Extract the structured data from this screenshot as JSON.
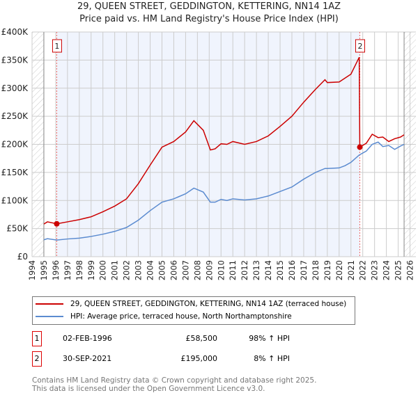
{
  "title": "29, QUEEN STREET, GEDDINGTON, KETTERING, NN14 1AZ",
  "subtitle": "Price paid vs. HM Land Registry's House Price Index (HPI)",
  "chart_data": {
    "type": "line",
    "title": "29, QUEEN STREET, GEDDINGTON, KETTERING, NN14 1AZ — Price paid vs. HM Land Registry's House Price Index (HPI)",
    "xlim": [
      1994,
      2026.5
    ],
    "ylim": [
      0,
      400000
    ],
    "x_ticks": [
      "1994",
      "1995",
      "1996",
      "1997",
      "1998",
      "1999",
      "2000",
      "2001",
      "2002",
      "2003",
      "2004",
      "2005",
      "2006",
      "2007",
      "2008",
      "2009",
      "2010",
      "2011",
      "2012",
      "2013",
      "2014",
      "2015",
      "2016",
      "2017",
      "2018",
      "2019",
      "2020",
      "2021",
      "2022",
      "2023",
      "2024",
      "2025",
      "2026"
    ],
    "y_ticks": [
      {
        "v": 0,
        "label": "£0"
      },
      {
        "v": 50000,
        "label": "£50K"
      },
      {
        "v": 100000,
        "label": "£100K"
      },
      {
        "v": 150000,
        "label": "£150K"
      },
      {
        "v": 200000,
        "label": "£200K"
      },
      {
        "v": 250000,
        "label": "£250K"
      },
      {
        "v": 300000,
        "label": "£300K"
      },
      {
        "v": 350000,
        "label": "£350K"
      },
      {
        "v": 400000,
        "label": "£400K"
      }
    ],
    "grid": true,
    "series": [
      {
        "name": "29, QUEEN STREET, GEDDINGTON, KETTERING, NN14 1AZ (terraced house)",
        "color": "#cc0000",
        "x": [
          1995,
          1995.3,
          1996.1,
          1997,
          1998,
          1999,
          2000,
          2001,
          2002,
          2003,
          2004,
          2005,
          2006,
          2007,
          2007.7,
          2008.5,
          2009.1,
          2009.5,
          2010,
          2010.5,
          2011,
          2012,
          2013,
          2014,
          2015,
          2016,
          2017,
          2018,
          2018.8,
          2019,
          2020,
          2020.5,
          2021,
          2021.7,
          2021.75,
          2022.3,
          2022.8,
          2023.3,
          2023.7,
          2024.2,
          2024.7,
          2025.2,
          2025.5
        ],
        "y": [
          58000,
          62000,
          58500,
          62000,
          66000,
          71000,
          80000,
          90000,
          103000,
          130000,
          163000,
          195000,
          205000,
          222000,
          242000,
          225000,
          190000,
          192000,
          201000,
          200000,
          205000,
          200000,
          205000,
          215000,
          232000,
          250000,
          275000,
          298000,
          315000,
          310000,
          311000,
          318000,
          325000,
          355000,
          195000,
          202000,
          218000,
          212000,
          213000,
          205000,
          210000,
          213000,
          217000
        ]
      },
      {
        "name": "HPI: Average price, terraced house, North Northamptonshire",
        "color": "#5b8bd0",
        "x": [
          1995,
          1995.3,
          1996.1,
          1997,
          1998,
          1999,
          2000,
          2001,
          2002,
          2003,
          2004,
          2005,
          2006,
          2007,
          2007.7,
          2008.5,
          2009.1,
          2009.5,
          2010,
          2010.5,
          2011,
          2012,
          2013,
          2014,
          2015,
          2016,
          2017,
          2018,
          2018.8,
          2019,
          2020,
          2020.5,
          2021,
          2021.7,
          2022.3,
          2022.8,
          2023.3,
          2023.7,
          2024.2,
          2024.7,
          2025.2,
          2025.5
        ],
        "y": [
          30000,
          32000,
          29500,
          31500,
          33000,
          36000,
          40000,
          45000,
          52000,
          65000,
          82000,
          97000,
          103000,
          112000,
          122000,
          115000,
          97000,
          97000,
          102000,
          100000,
          103000,
          101000,
          103000,
          108000,
          116000,
          124000,
          138000,
          150000,
          157000,
          157000,
          158000,
          162000,
          168000,
          181000,
          188000,
          200000,
          204000,
          196000,
          198000,
          191000,
          197000,
          200000
        ]
      }
    ],
    "annotations": [
      {
        "label": "1",
        "x": 1996.09,
        "y": 58500
      },
      {
        "label": "2",
        "x": 2021.75,
        "y": 195000
      }
    ],
    "shaded_range": [
      1996.09,
      2021.75
    ],
    "hatched_ranges": [
      [
        1994,
        1995
      ],
      [
        2025.5,
        2026.5
      ]
    ],
    "legend_placement": "bottom"
  },
  "legend": {
    "red": "29, QUEEN STREET, GEDDINGTON, KETTERING, NN14 1AZ (terraced house)",
    "blue": "HPI: Average price, terraced house, North Northamptonshire"
  },
  "sales": [
    {
      "num": "1",
      "date": "02-FEB-1996",
      "price": "£58,500",
      "hpi": "98% ↑ HPI"
    },
    {
      "num": "2",
      "date": "30-SEP-2021",
      "price": "£195,000",
      "hpi": "8% ↑ HPI"
    }
  ],
  "footer": [
    "Contains HM Land Registry data © Crown copyright and database right 2025.",
    "This data is licensed under the Open Government Licence v3.0."
  ]
}
